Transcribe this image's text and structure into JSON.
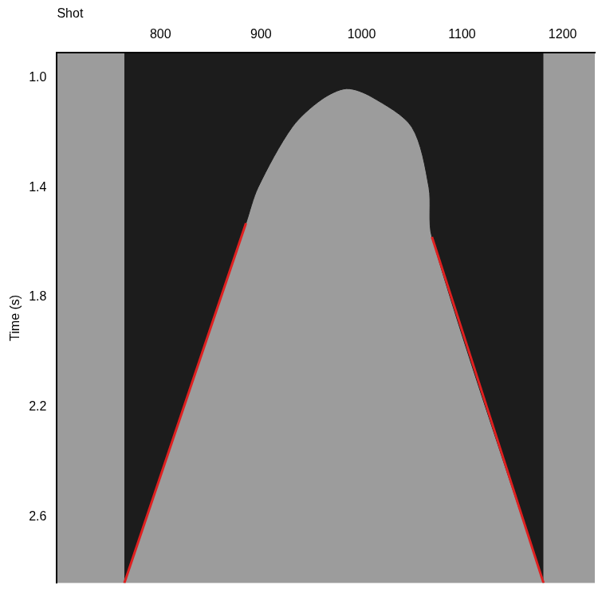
{
  "chart_data": {
    "type": "line",
    "xlabel": "Shot",
    "ylabel": "Time (s)",
    "xlim": [
      697,
      1232
    ],
    "xticks": [
      800,
      900,
      1000,
      1100,
      1200
    ],
    "ylim": [
      0.91,
      2.84
    ],
    "yticks": [
      {
        "value": 1.0,
        "label": "1.0"
      },
      1.4,
      1.8,
      2.2,
      2.6
    ],
    "grid": false,
    "series": [
      {
        "type": "area",
        "color": "#1c1c1c",
        "x": [
          764,
          885,
          897,
          931,
          960,
          985,
          1010,
          1050,
          1067,
          1070,
          1181
        ],
        "values": [
          2.84,
          1.53,
          1.4,
          1.18,
          1.08,
          1.04,
          1.07,
          1.18,
          1.4,
          1.58,
          2.84
        ]
      },
      {
        "type": "line",
        "color": "#e02020",
        "x": [
          885,
          764
        ],
        "values": [
          1.53,
          2.84
        ]
      },
      {
        "type": "line",
        "color": "#e02020",
        "x": [
          1070,
          1181
        ],
        "values": [
          1.58,
          2.84
        ]
      }
    ]
  }
}
